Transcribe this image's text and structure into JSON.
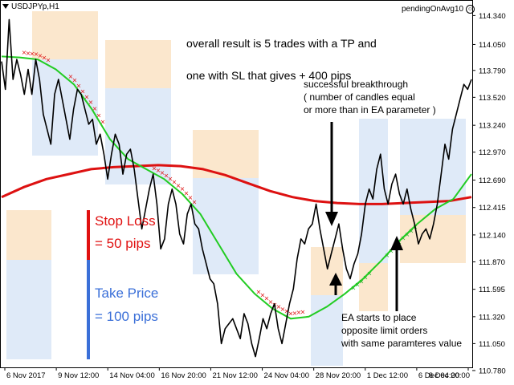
{
  "header": {
    "symbol": "USDJPYp,H1",
    "indicator": "pendingOnAvg10",
    "smiley_icon": "smiley-icon",
    "menu_icon": "triangle-down-icon"
  },
  "annotations": {
    "result_line1": "overall result is 5 trades with a TP and",
    "result_line2": "one with SL that gives + 400 pips",
    "breakthrough": "successful breakthrough\n( number of candles equal\nor more than in EA parameter )",
    "ea_orders": "EA starts to place\nopposite limit orders\nwith same paramteres value"
  },
  "legend_box": {
    "stop_loss_label": "Stop Loss",
    "stop_loss_value": "=  50 pips",
    "take_price_label": "Take Price",
    "take_price_value": "= 100 pips"
  },
  "colors": {
    "price": "#000000",
    "ma_fast": "#22cc22",
    "ma_slow": "#dd1111",
    "sl_zone": "#fbe7cd",
    "tp_zone": "#dfeaf8",
    "order_markers_sell": "#dd1111",
    "order_markers_buy": "#22aa22",
    "stop_loss_text": "#e01010",
    "take_price_text": "#3a6fd8"
  },
  "chart_data": {
    "type": "line",
    "title": "USDJPYp,H1",
    "y_axis_position": "right",
    "ylim": [
      110.82,
      114.48
    ],
    "y_ticks": [
      "114.340",
      "114.050",
      "113.790",
      "113.520",
      "113.240",
      "112.970",
      "112.690",
      "112.415",
      "112.140",
      "111.870",
      "111.595",
      "111.320",
      "111.050",
      "110.780"
    ],
    "x_ticks": [
      "6 Nov 2017",
      "9 Nov 12:00",
      "14 Nov 04:00",
      "16 Nov 20:00",
      "21 Nov 12:00",
      "24 Nov 04:00",
      "28 Nov 20:00",
      "1 Dec 12:00",
      "6 Dec 04:00",
      "8 Dec 20:00"
    ],
    "series": [
      {
        "role": "price",
        "values": [
          113.88,
          113.6,
          114.3,
          113.7,
          113.9,
          113.75,
          113.55,
          113.8,
          113.55,
          113.9,
          113.7,
          113.35,
          113.2,
          113.05,
          113.55,
          113.7,
          113.5,
          113.3,
          113.1,
          113.4,
          113.6,
          113.55,
          113.4,
          113.25,
          113.3,
          113.05,
          113.15,
          112.95,
          112.7,
          112.95,
          113.15,
          113.05,
          112.75,
          112.95,
          113.0,
          112.8,
          112.5,
          112.2,
          112.4,
          112.6,
          112.75,
          112.45,
          112.0,
          112.1,
          112.45,
          112.6,
          112.45,
          112.15,
          112.05,
          112.35,
          112.45,
          112.25,
          112.2,
          112.0,
          111.85,
          111.7,
          111.65,
          111.45,
          111.05,
          111.2,
          111.25,
          111.3,
          111.2,
          111.1,
          111.35,
          111.25,
          111.05,
          110.92,
          111.1,
          111.3,
          111.2,
          111.35,
          111.45,
          111.2,
          111.05,
          111.25,
          111.45,
          111.6,
          111.9,
          112.1,
          112.05,
          112.2,
          112.25,
          112.45,
          112.2,
          112.0,
          111.8,
          111.95,
          112.1,
          112.25,
          112.0,
          111.8,
          111.7,
          111.85,
          111.95,
          112.15,
          112.45,
          112.6,
          112.5,
          112.8,
          112.95,
          112.6,
          112.45,
          112.65,
          112.75,
          112.55,
          112.45,
          112.6,
          112.4,
          112.25,
          112.05,
          112.15,
          112.2,
          112.1,
          112.25,
          112.45,
          112.75,
          113.05,
          112.9,
          113.2,
          113.35,
          113.5,
          113.65,
          113.6,
          113.7
        ]
      },
      {
        "role": "ma_fast",
        "values": [
          113.93,
          113.92,
          113.9,
          113.8,
          113.65,
          113.4,
          113.1,
          112.9,
          112.8,
          112.7,
          112.55,
          112.35,
          112.05,
          111.75,
          111.55,
          111.4,
          111.3,
          111.32,
          111.42,
          111.55,
          111.7,
          111.88,
          112.08,
          112.25,
          112.4,
          112.5,
          112.75
        ]
      },
      {
        "role": "ma_slow",
        "values": [
          112.52,
          112.62,
          112.7,
          112.75,
          112.8,
          112.82,
          112.83,
          112.84,
          112.83,
          112.8,
          112.74,
          112.66,
          112.58,
          112.52,
          112.48,
          112.46,
          112.45,
          112.45,
          112.46,
          112.47,
          112.48,
          112.52
        ]
      }
    ]
  }
}
